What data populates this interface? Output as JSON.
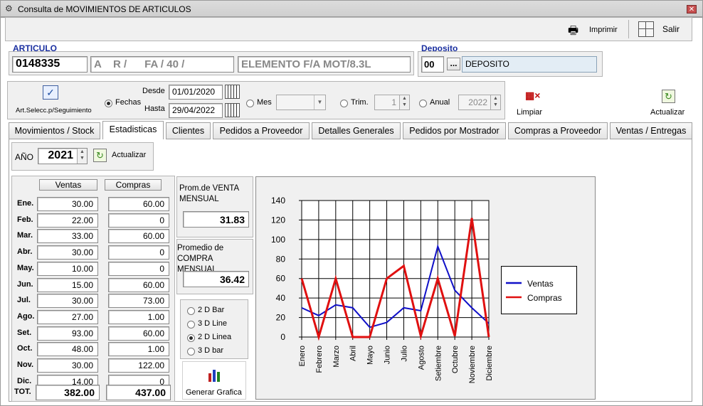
{
  "window": {
    "title": "Consulta de MOVIMIENTOS DE ARTICULOS"
  },
  "toolbar": {
    "print_label": "Imprimir",
    "exit_label": "Salir"
  },
  "articulo": {
    "label": "ARTICULO",
    "code": "0148335",
    "desc1": "A    R /      FA / 40 /",
    "desc2": "ELEMENTO F/A MOT/8.3L"
  },
  "deposito": {
    "label": "Deposito",
    "code": "00",
    "browse": "...",
    "name": "DEPOSITO"
  },
  "filters": {
    "art_select_label": "Art.Selecc.p/Seguimiento",
    "fechas_label": "Fechas",
    "desde_label": "Desde",
    "hasta_label": "Hasta",
    "desde": "01/01/2020",
    "hasta": "29/04/2022",
    "mes_label": "Mes",
    "trim_label": "Trim.",
    "trim_value": "1",
    "anual_label": "Anual",
    "anual_value": "2022",
    "limpiar_label": "Limpiar",
    "actualizar_label": "Actualizar"
  },
  "tabs": [
    "Movimientos / Stock",
    "Estadisticas",
    "Clientes",
    "Pedidos a Proveedor",
    "Detalles Generales",
    "Pedidos por Mostrador",
    "Compras a Proveedor",
    "Ventas / Entregas"
  ],
  "year": {
    "label": "AÑO",
    "value": "2021",
    "actualizar_label": "Actualizar"
  },
  "table": {
    "ventas_header": "Ventas",
    "compras_header": "Compras",
    "months": [
      "Ene.",
      "Feb.",
      "Mar.",
      "Abr.",
      "May.",
      "Jun.",
      "Jul.",
      "Ago.",
      "Set.",
      "Oct.",
      "Nov.",
      "Dic."
    ],
    "ventas": [
      "30.00",
      "22.00",
      "33.00",
      "30.00",
      "10.00",
      "15.00",
      "30.00",
      "27.00",
      "93.00",
      "48.00",
      "30.00",
      "14.00"
    ],
    "compras": [
      "60.00",
      "0",
      "60.00",
      "0",
      "0",
      "60.00",
      "73.00",
      "1.00",
      "60.00",
      "1.00",
      "122.00",
      "0"
    ],
    "total_label": "TOT.",
    "total_ventas": "382.00",
    "total_compras": "437.00"
  },
  "stats": {
    "venta_label": "Prom.de VENTA MENSUAL",
    "venta_value": "31.83",
    "compra_label": "Promedio de COMPRA MENSUAL",
    "compra_value": "36.42"
  },
  "chart_options": {
    "opt1": "2 D Bar",
    "opt2": "3 D Line",
    "opt3": "2 D Linea",
    "opt4": "3 D bar",
    "selected": "2 D Linea",
    "generate_label": "Generar Grafica"
  },
  "colors": {
    "ventas": "#1010c8",
    "compras": "#e01010"
  },
  "chart_data": {
    "type": "line",
    "categories": [
      "Enero",
      "Febrero",
      "Marzo",
      "Abril",
      "Mayo",
      "Junio",
      "Julio",
      "Agosto",
      "Setiembre",
      "Octubre",
      "Noviembre",
      "Diciembre"
    ],
    "series": [
      {
        "name": "Ventas",
        "values": [
          30,
          22,
          33,
          30,
          10,
          15,
          30,
          27,
          93,
          48,
          30,
          14
        ]
      },
      {
        "name": "Compras",
        "values": [
          60,
          0,
          60,
          0,
          0,
          60,
          73,
          1,
          60,
          1,
          122,
          0
        ]
      }
    ],
    "y_ticks": [
      "140",
      "120",
      "100",
      "80",
      "60",
      "40",
      "20",
      "0"
    ],
    "ylim": [
      0,
      140
    ],
    "grid": true,
    "legend": "right"
  }
}
